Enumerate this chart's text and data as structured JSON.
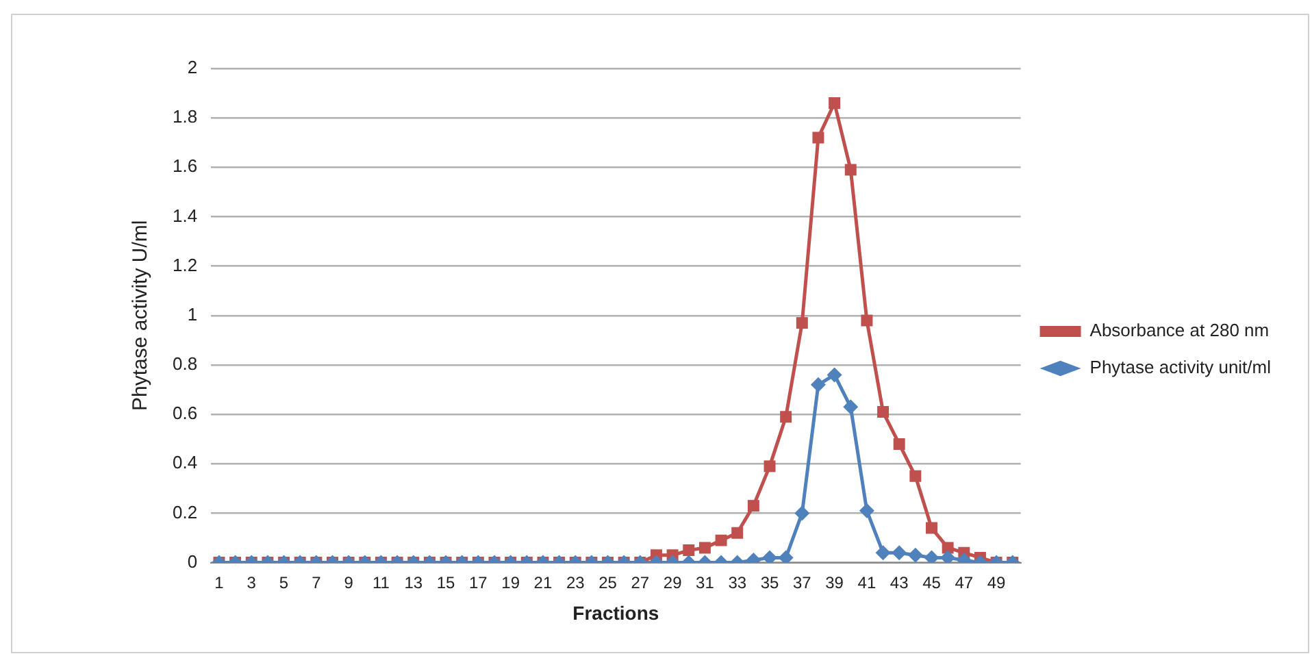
{
  "chart_data": {
    "type": "line",
    "xlabel": "Fractions",
    "ylabel": "Phytase activity U/ml",
    "x": [
      1,
      2,
      3,
      4,
      5,
      6,
      7,
      8,
      9,
      10,
      11,
      12,
      13,
      14,
      15,
      16,
      17,
      18,
      19,
      20,
      21,
      22,
      23,
      24,
      25,
      26,
      27,
      28,
      29,
      30,
      31,
      32,
      33,
      34,
      35,
      36,
      37,
      38,
      39,
      40,
      41,
      42,
      43,
      44,
      45,
      46,
      47,
      48,
      49,
      50
    ],
    "xlim": [
      0.5,
      50.5
    ],
    "xticks": [
      1,
      3,
      5,
      7,
      9,
      11,
      13,
      15,
      17,
      19,
      21,
      23,
      25,
      27,
      29,
      31,
      33,
      35,
      37,
      39,
      41,
      43,
      45,
      47,
      49
    ],
    "series": [
      {
        "name": "Absorbance at 280 nm",
        "color": "#c0504d",
        "marker": "square",
        "values": [
          0,
          0,
          0,
          0,
          0,
          0,
          0,
          0,
          0,
          0,
          0,
          0,
          0,
          0,
          0,
          0,
          0,
          0,
          0,
          0,
          0,
          0,
          0,
          0,
          0,
          0,
          0,
          0.03,
          0.03,
          0.05,
          0.06,
          0.09,
          0.12,
          0.23,
          0.39,
          0.59,
          0.97,
          1.72,
          1.86,
          1.59,
          0.98,
          0.61,
          0.48,
          0.35,
          0.14,
          0.06,
          0.04,
          0.02,
          0,
          0
        ]
      },
      {
        "name": "Phytase activity unit/ml",
        "color": "#4f81bd",
        "marker": "diamond",
        "values": [
          0,
          0,
          0,
          0,
          0,
          0,
          0,
          0,
          0,
          0,
          0,
          0,
          0,
          0,
          0,
          0,
          0,
          0,
          0,
          0,
          0,
          0,
          0,
          0,
          0,
          0,
          0,
          0,
          0,
          0,
          0,
          0,
          0,
          0.01,
          0.02,
          0.02,
          0.2,
          0.72,
          0.76,
          0.63,
          0.21,
          0.04,
          0.04,
          0.03,
          0.02,
          0.02,
          0.01,
          0,
          0,
          0
        ]
      }
    ],
    "ylim": [
      0,
      2
    ],
    "yticks": [
      0,
      0.2,
      0.4,
      0.6,
      0.8,
      1,
      1.2,
      1.4,
      1.6,
      1.8,
      2
    ],
    "grid": "y",
    "legend": "right"
  }
}
